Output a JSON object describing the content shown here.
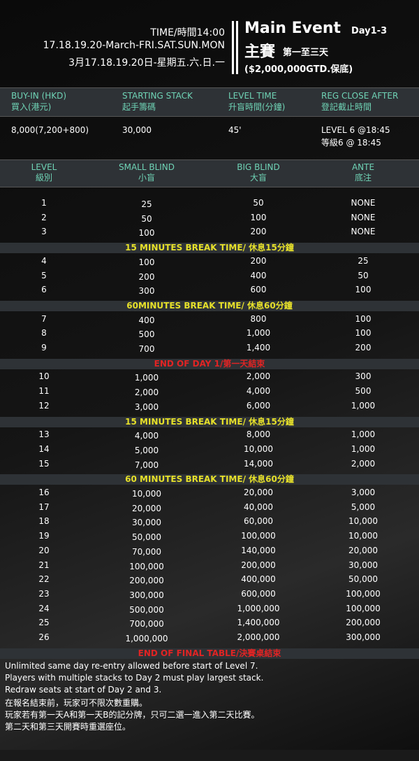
{
  "header": {
    "time": "TIME/時間14:00",
    "dates_en": "17.18.19.20-March-FRI.SAT.SUN.MON",
    "dates_zh": "3月17.18.19.20日-星期五.六.日.一",
    "title": "Main Event",
    "days": "Day1-3",
    "title_zh": "主賽",
    "days_zh": "第一至三天",
    "guarantee": "($2,000,000GTD.保底)"
  },
  "info": {
    "columns": [
      {
        "en": "BUY-IN (HKD)",
        "zh": "買入(港元)",
        "value": [
          "8,000(7,200+800)"
        ]
      },
      {
        "en": "STARTING STACK",
        "zh": "起手籌碼",
        "value": [
          "30,000"
        ]
      },
      {
        "en": "LEVEL TIME",
        "zh": "升盲時間(分鐘)",
        "value": [
          "45'"
        ]
      },
      {
        "en": "REG CLOSE AFTER",
        "zh": "登記截止時間",
        "value": [
          "LEVEL 6 @18:45",
          "等級6 @ 18:45"
        ]
      }
    ]
  },
  "structure": {
    "columns": [
      {
        "en": "LEVEL",
        "zh": "級別"
      },
      {
        "en": "SMALL BLIND",
        "zh": "小盲"
      },
      {
        "en": "BIG BLIND",
        "zh": "大盲"
      },
      {
        "en": "ANTE",
        "zh": "底注"
      }
    ],
    "rows": [
      [
        "1",
        "25",
        "50",
        "NONE"
      ],
      [
        "2",
        "50",
        "100",
        "NONE"
      ],
      [
        "3",
        "100",
        "200",
        "NONE"
      ],
      {
        "break": "15 MINUTES BREAK TIME/ 休息15分鐘",
        "color": "#e6e02a"
      },
      [
        "4",
        "100",
        "200",
        "25"
      ],
      [
        "5",
        "200",
        "400",
        "50"
      ],
      [
        "6",
        "300",
        "600",
        "100"
      ],
      {
        "break": "60MINUTES BREAK TIME/ 休息60分鐘",
        "color": "#e6e02a"
      },
      [
        "7",
        "400",
        "800",
        "100"
      ],
      [
        "8",
        "500",
        "1,000",
        "100"
      ],
      [
        "9",
        "700",
        "1,400",
        "200"
      ],
      {
        "break": "END OF DAY 1/第一天結束",
        "color": "#e02424"
      },
      [
        "10",
        "1,000",
        "2,000",
        "300"
      ],
      [
        "11",
        "2,000",
        "4,000",
        "500"
      ],
      [
        "12",
        "3,000",
        "6,000",
        "1,000"
      ],
      {
        "break": "15 MINUTES BREAK TIME/ 休息15分鐘",
        "color": "#e6e02a"
      },
      [
        "13",
        "4,000",
        "8,000",
        "1,000"
      ],
      [
        "14",
        "5,000",
        "10,000",
        "1,000"
      ],
      [
        "15",
        "7,000",
        "14,000",
        "2,000"
      ],
      {
        "break": "60 MINUTES BREAK TIME/ 休息60分鐘",
        "color": "#e6e02a"
      },
      [
        "16",
        "10,000",
        "20,000",
        "3,000"
      ],
      [
        "17",
        "20,000",
        "40,000",
        "5,000"
      ],
      [
        "18",
        "30,000",
        "60,000",
        "10,000"
      ],
      [
        "19",
        "50,000",
        "100,000",
        "10,000"
      ],
      [
        "20",
        "70,000",
        "140,000",
        "20,000"
      ],
      [
        "21",
        "100,000",
        "200,000",
        "30,000"
      ],
      [
        "22",
        "200,000",
        "400,000",
        "50,000"
      ],
      [
        "23",
        "300,000",
        "600,000",
        "100,000"
      ],
      [
        "24",
        "500,000",
        "1,000,000",
        "100,000"
      ],
      [
        "25",
        "700,000",
        "1,400,000",
        "200,000"
      ],
      [
        "26",
        "1,000,000",
        "2,000,000",
        "300,000"
      ],
      {
        "break": "END OF FINAL TABLE/決賽桌結束",
        "color": "#e02424"
      }
    ]
  },
  "notes": [
    "Unlimited same day re-entry allowed before start of Level 7.",
    "Players with multiple stacks to Day 2 must play largest stack.",
    "Redraw seats at start of Day 2 and 3.",
    "在報名結束前，玩家可不限次數重購。",
    "玩家若有第一天A和第一天B的記分牌，只可二選一進入第二天比賽。",
    "第二天和第三天開賽時重選座位。"
  ]
}
